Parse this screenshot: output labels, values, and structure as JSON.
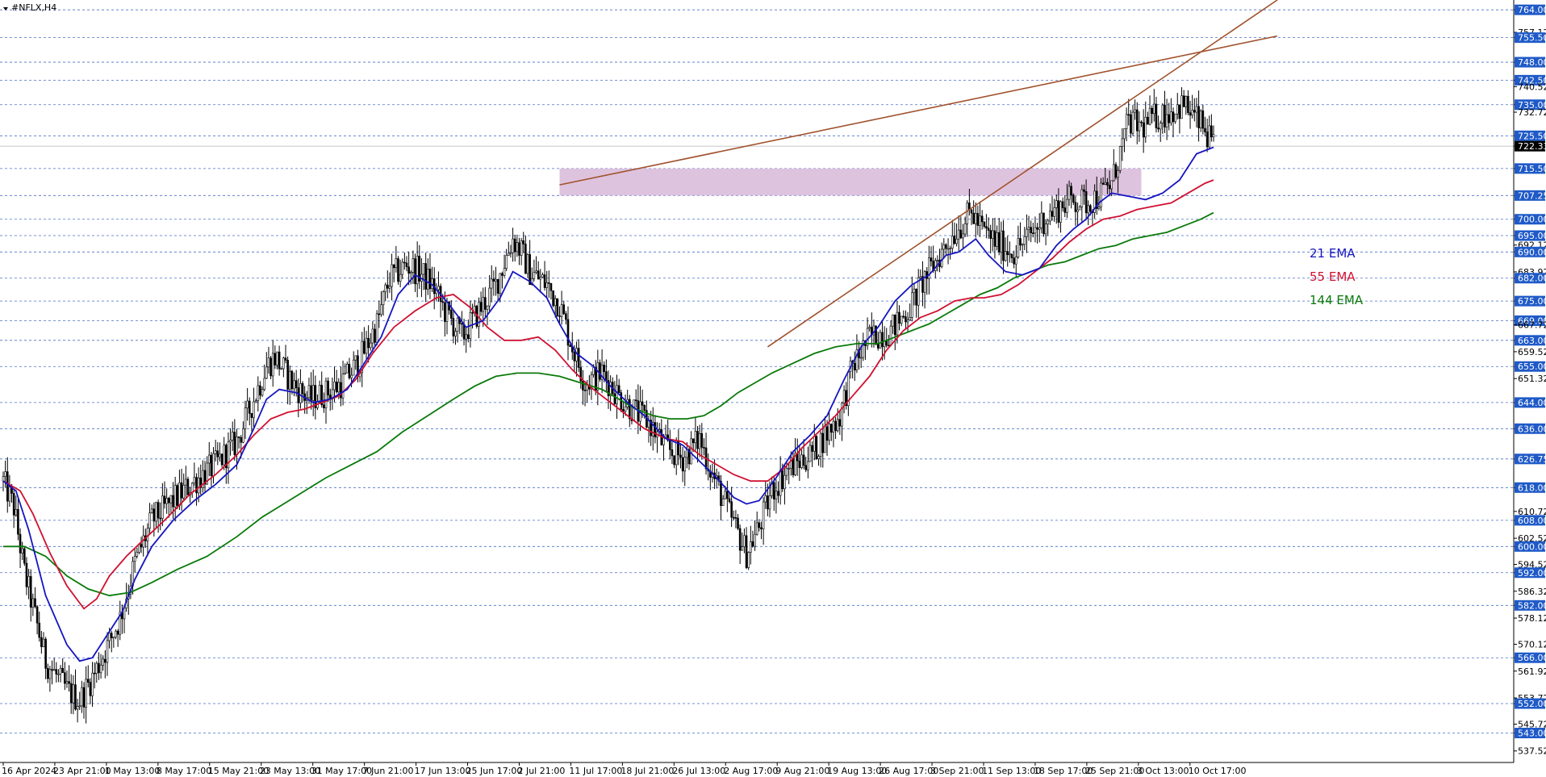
{
  "window": {
    "title": "#NFLX,H4"
  },
  "chart_data": {
    "type": "candlestick",
    "title": "#NFLX,H4",
    "ylim": [
      534,
      767
    ],
    "current_price": {
      "value": 722.33,
      "label": "722.33"
    },
    "y_ticks": [
      "764.00",
      "757.12",
      "755.50",
      "748.00",
      "742.50",
      "740.52",
      "735.00",
      "732.72",
      "725.50",
      "722.33",
      "715.50",
      "707.25",
      "700.00",
      "695.00",
      "692.12",
      "690.00",
      "683.92",
      "682.00",
      "675.00",
      "669.00",
      "667.72",
      "663.00",
      "659.52",
      "655.00",
      "651.32",
      "644.00",
      "636.00",
      "626.75",
      "618.00",
      "610.72",
      "608.00",
      "602.52",
      "600.00",
      "594.52",
      "592.00",
      "586.32",
      "582.00",
      "578.12",
      "570.12",
      "566.00",
      "561.92",
      "553.72",
      "552.00",
      "545.72",
      "543.00",
      "537.52"
    ],
    "highlighted_levels": [
      "764.00",
      "755.50",
      "748.00",
      "742.50",
      "735.00",
      "725.50",
      "715.50",
      "707.25",
      "700.00",
      "695.00",
      "690.00",
      "682.00",
      "675.00",
      "669.00",
      "663.00",
      "655.00",
      "644.00",
      "636.00",
      "626.75",
      "618.00",
      "608.00",
      "600.00",
      "592.00",
      "582.00",
      "566.00",
      "552.00",
      "543.00"
    ],
    "x_labels": [
      "16 Apr 2024",
      "23 Apr 21:00",
      "1 May 13:00",
      "8 May 17:00",
      "15 May 21:00",
      "23 May 13:00",
      "31 May 17:00",
      "7 Jun 21:00",
      "17 Jun 13:00",
      "25 Jun 17:00",
      "2 Jul 21:00",
      "11 Jul 17:00",
      "18 Jul 21:00",
      "26 Jul 13:00",
      "2 Aug 17:00",
      "9 Aug 21:00",
      "19 Aug 13:00",
      "26 Aug 17:00",
      "3 Sep 21:00",
      "11 Sep 13:00",
      "18 Sep 17:00",
      "25 Sep 21:00",
      "3 Oct 13:00",
      "10 Oct 17:00"
    ],
    "close_path": [
      [
        0,
        620
      ],
      [
        5,
        612
      ],
      [
        10,
        592
      ],
      [
        20,
        565
      ],
      [
        30,
        556
      ],
      [
        36,
        553
      ],
      [
        42,
        560
      ],
      [
        48,
        568
      ],
      [
        55,
        578
      ],
      [
        62,
        595
      ],
      [
        70,
        608
      ],
      [
        80,
        614
      ],
      [
        90,
        620
      ],
      [
        100,
        625
      ],
      [
        110,
        632
      ],
      [
        118,
        645
      ],
      [
        124,
        655
      ],
      [
        128,
        658
      ],
      [
        136,
        650
      ],
      [
        144,
        645
      ],
      [
        152,
        647
      ],
      [
        160,
        650
      ],
      [
        168,
        657
      ],
      [
        176,
        668
      ],
      [
        182,
        682
      ],
      [
        190,
        686
      ],
      [
        196,
        684
      ],
      [
        202,
        680
      ],
      [
        208,
        672
      ],
      [
        216,
        664
      ],
      [
        224,
        672
      ],
      [
        232,
        680
      ],
      [
        240,
        694
      ],
      [
        244,
        690
      ],
      [
        248,
        684
      ],
      [
        256,
        680
      ],
      [
        262,
        674
      ],
      [
        266,
        665
      ],
      [
        274,
        650
      ],
      [
        282,
        653
      ],
      [
        290,
        646
      ],
      [
        298,
        641
      ],
      [
        304,
        638
      ],
      [
        312,
        630
      ],
      [
        320,
        627
      ],
      [
        328,
        633
      ],
      [
        334,
        622
      ],
      [
        340,
        613
      ],
      [
        346,
        604
      ],
      [
        350,
        598
      ],
      [
        356,
        606
      ],
      [
        362,
        617
      ],
      [
        370,
        624
      ],
      [
        380,
        628
      ],
      [
        386,
        633
      ],
      [
        394,
        640
      ],
      [
        400,
        655
      ],
      [
        408,
        664
      ],
      [
        418,
        666
      ],
      [
        426,
        672
      ],
      [
        434,
        682
      ],
      [
        442,
        690
      ],
      [
        448,
        696
      ],
      [
        456,
        702
      ],
      [
        462,
        696
      ],
      [
        470,
        692
      ],
      [
        476,
        690
      ],
      [
        482,
        694
      ],
      [
        490,
        700
      ],
      [
        496,
        703
      ],
      [
        502,
        706
      ],
      [
        510,
        705
      ],
      [
        516,
        707
      ],
      [
        522,
        711
      ],
      [
        530,
        730
      ],
      [
        536,
        728
      ],
      [
        542,
        731
      ],
      [
        550,
        733
      ],
      [
        556,
        735
      ],
      [
        564,
        729
      ],
      [
        570,
        722
      ]
    ],
    "ema21_path": [
      [
        0,
        620
      ],
      [
        6,
        617
      ],
      [
        12,
        605
      ],
      [
        20,
        585
      ],
      [
        30,
        570
      ],
      [
        36,
        565
      ],
      [
        42,
        566
      ],
      [
        48,
        572
      ],
      [
        56,
        580
      ],
      [
        62,
        590
      ],
      [
        70,
        600
      ],
      [
        80,
        608
      ],
      [
        90,
        614
      ],
      [
        100,
        619
      ],
      [
        110,
        625
      ],
      [
        118,
        636
      ],
      [
        124,
        645
      ],
      [
        130,
        648
      ],
      [
        138,
        647
      ],
      [
        146,
        644
      ],
      [
        154,
        645
      ],
      [
        162,
        648
      ],
      [
        170,
        656
      ],
      [
        178,
        664
      ],
      [
        186,
        677
      ],
      [
        194,
        683
      ],
      [
        202,
        680
      ],
      [
        210,
        674
      ],
      [
        218,
        667
      ],
      [
        226,
        669
      ],
      [
        234,
        676
      ],
      [
        240,
        684
      ],
      [
        248,
        681
      ],
      [
        256,
        676
      ],
      [
        262,
        668
      ],
      [
        270,
        659
      ],
      [
        278,
        655
      ],
      [
        286,
        649
      ],
      [
        294,
        644
      ],
      [
        302,
        640
      ],
      [
        312,
        633
      ],
      [
        320,
        631
      ],
      [
        328,
        626
      ],
      [
        336,
        621
      ],
      [
        344,
        615
      ],
      [
        350,
        613
      ],
      [
        356,
        614
      ],
      [
        364,
        621
      ],
      [
        372,
        629
      ],
      [
        380,
        634
      ],
      [
        388,
        640
      ],
      [
        396,
        651
      ],
      [
        404,
        661
      ],
      [
        412,
        667
      ],
      [
        420,
        675
      ],
      [
        428,
        680
      ],
      [
        436,
        683
      ],
      [
        444,
        689
      ],
      [
        450,
        690
      ],
      [
        458,
        694
      ],
      [
        464,
        689
      ],
      [
        472,
        684
      ],
      [
        480,
        683
      ],
      [
        488,
        685
      ],
      [
        496,
        692
      ],
      [
        504,
        697
      ],
      [
        510,
        700
      ],
      [
        516,
        705
      ],
      [
        522,
        708
      ],
      [
        530,
        707
      ],
      [
        538,
        706
      ],
      [
        546,
        708
      ],
      [
        554,
        712
      ],
      [
        562,
        720
      ],
      [
        570,
        722
      ]
    ],
    "ema55_path": [
      [
        0,
        620
      ],
      [
        8,
        617
      ],
      [
        14,
        610
      ],
      [
        22,
        598
      ],
      [
        30,
        588
      ],
      [
        38,
        581
      ],
      [
        44,
        584
      ],
      [
        50,
        591
      ],
      [
        58,
        597
      ],
      [
        66,
        602
      ],
      [
        76,
        608
      ],
      [
        88,
        616
      ],
      [
        100,
        622
      ],
      [
        110,
        628
      ],
      [
        118,
        634
      ],
      [
        126,
        639
      ],
      [
        134,
        641
      ],
      [
        142,
        642
      ],
      [
        150,
        644
      ],
      [
        158,
        646
      ],
      [
        166,
        651
      ],
      [
        174,
        659
      ],
      [
        184,
        667
      ],
      [
        194,
        672
      ],
      [
        204,
        676
      ],
      [
        212,
        677
      ],
      [
        220,
        673
      ],
      [
        228,
        667
      ],
      [
        236,
        663
      ],
      [
        244,
        663
      ],
      [
        252,
        664
      ],
      [
        260,
        660
      ],
      [
        268,
        654
      ],
      [
        276,
        649
      ],
      [
        284,
        645
      ],
      [
        292,
        641
      ],
      [
        302,
        636
      ],
      [
        312,
        633
      ],
      [
        320,
        632
      ],
      [
        328,
        628
      ],
      [
        336,
        625
      ],
      [
        344,
        622
      ],
      [
        352,
        620
      ],
      [
        360,
        620
      ],
      [
        368,
        624
      ],
      [
        376,
        630
      ],
      [
        384,
        635
      ],
      [
        392,
        640
      ],
      [
        400,
        646
      ],
      [
        408,
        652
      ],
      [
        416,
        660
      ],
      [
        424,
        666
      ],
      [
        432,
        670
      ],
      [
        440,
        672
      ],
      [
        448,
        675
      ],
      [
        456,
        676
      ],
      [
        462,
        676
      ],
      [
        470,
        677
      ],
      [
        478,
        680
      ],
      [
        486,
        684
      ],
      [
        494,
        688
      ],
      [
        502,
        693
      ],
      [
        510,
        697
      ],
      [
        518,
        700
      ],
      [
        526,
        701
      ],
      [
        534,
        703
      ],
      [
        542,
        704
      ],
      [
        550,
        705
      ],
      [
        558,
        708
      ],
      [
        566,
        711
      ],
      [
        570,
        712
      ]
    ],
    "ema144_path": [
      [
        0,
        600
      ],
      [
        10,
        600
      ],
      [
        20,
        597
      ],
      [
        30,
        591
      ],
      [
        40,
        587
      ],
      [
        50,
        585
      ],
      [
        60,
        586
      ],
      [
        70,
        589
      ],
      [
        82,
        593
      ],
      [
        96,
        597
      ],
      [
        110,
        603
      ],
      [
        122,
        609
      ],
      [
        132,
        613
      ],
      [
        142,
        617
      ],
      [
        152,
        621
      ],
      [
        164,
        625
      ],
      [
        176,
        629
      ],
      [
        188,
        635
      ],
      [
        200,
        640
      ],
      [
        212,
        645
      ],
      [
        222,
        649
      ],
      [
        232,
        652
      ],
      [
        242,
        653
      ],
      [
        252,
        653
      ],
      [
        262,
        652
      ],
      [
        272,
        650
      ],
      [
        282,
        648
      ],
      [
        290,
        645
      ],
      [
        298,
        642
      ],
      [
        306,
        640
      ],
      [
        314,
        639
      ],
      [
        322,
        639
      ],
      [
        330,
        640
      ],
      [
        338,
        643
      ],
      [
        346,
        647
      ],
      [
        354,
        650
      ],
      [
        362,
        653
      ],
      [
        372,
        656
      ],
      [
        382,
        659
      ],
      [
        392,
        661
      ],
      [
        402,
        662
      ],
      [
        412,
        662
      ],
      [
        420,
        664
      ],
      [
        428,
        666
      ],
      [
        436,
        668
      ],
      [
        444,
        671
      ],
      [
        452,
        674
      ],
      [
        460,
        677
      ],
      [
        468,
        679
      ],
      [
        476,
        682
      ],
      [
        484,
        684
      ],
      [
        492,
        686
      ],
      [
        500,
        687
      ],
      [
        508,
        689
      ],
      [
        516,
        691
      ],
      [
        524,
        692
      ],
      [
        532,
        694
      ],
      [
        540,
        695
      ],
      [
        548,
        696
      ],
      [
        556,
        698
      ],
      [
        564,
        700
      ],
      [
        570,
        702
      ]
    ],
    "trendlines": [
      {
        "name": "upper-resistance",
        "color": "#a0522d",
        "from": [
          262,
          710.5
        ],
        "to": [
          600,
          756
        ]
      },
      {
        "name": "lower-support",
        "color": "#a0522d",
        "from": [
          360,
          661
        ],
        "to": [
          600,
          767
        ]
      }
    ],
    "zone": {
      "from_x": 262,
      "to_x": 536,
      "y_low": 707.25,
      "y_high": 715.5,
      "color": "#d8b9d8"
    },
    "legend": [
      {
        "label": "21 EMA",
        "color": "#1515c0"
      },
      {
        "label": "55 EMA",
        "color": "#d01030"
      },
      {
        "label": "144 EMA",
        "color": "#0a7a0a"
      }
    ],
    "colors": {
      "candle": "#000000",
      "grid": "#4a6fc7",
      "axis_bg": "#1f5ac8"
    }
  }
}
